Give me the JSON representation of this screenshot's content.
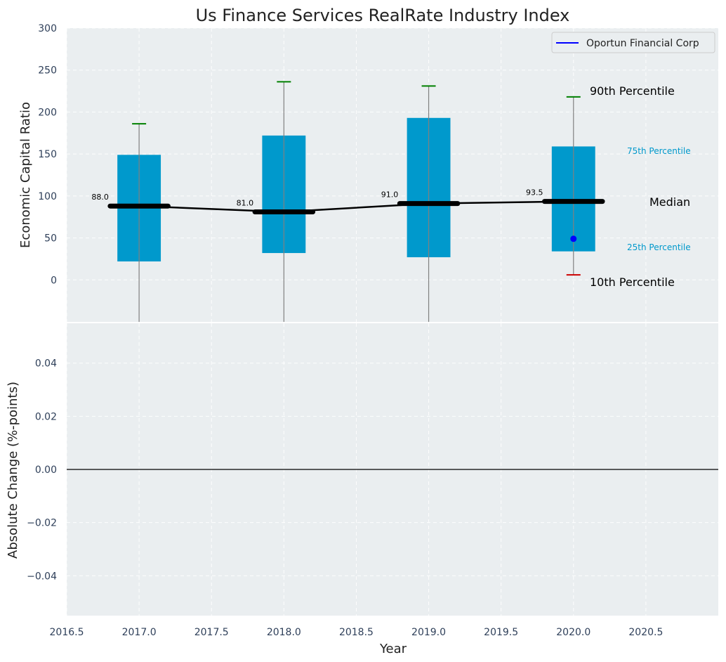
{
  "chart_data": {
    "type": "box",
    "title": "Us Finance Services RealRate Industry Index",
    "colors": {
      "box": "#0099cc",
      "median": "#000000",
      "p90": "#008000",
      "p10": "#cc0000",
      "company": "#0000ff",
      "background": "#eaeef0"
    },
    "top_panel": {
      "ylabel": "Economic Capital Ratio",
      "ylim": [
        -50,
        300
      ],
      "yticks": [
        "0",
        "50",
        "100",
        "150",
        "200",
        "250",
        "300"
      ],
      "ytick_values": [
        0,
        50,
        100,
        150,
        200,
        250,
        300
      ],
      "years": [
        2017,
        2018,
        2019,
        2020
      ],
      "p25": [
        22,
        32,
        27,
        34
      ],
      "p75": [
        149,
        172,
        193,
        159
      ],
      "median": [
        88.0,
        81.0,
        91.0,
        93.5
      ],
      "median_labels": [
        "88.0",
        "81.0",
        "91.0",
        "93.5"
      ],
      "p90": [
        186,
        236,
        231,
        218
      ],
      "p10": [
        null,
        null,
        null,
        6
      ],
      "company_series": {
        "name": "Oportun Financial Corp",
        "points": [
          [
            2020,
            49
          ]
        ]
      },
      "annotations": {
        "p90": "90th Percentile",
        "p75": "75th Percentile",
        "median": "Median",
        "p25": "25th Percentile",
        "p10": "10th Percentile"
      },
      "legend_position": "top-right"
    },
    "bottom_panel": {
      "xlabel": "Year",
      "ylabel": "Absolute Change (%-points)",
      "ylim": [
        -0.055,
        0.055
      ],
      "yticks": [
        "−0.04",
        "−0.02",
        "0.00",
        "0.02",
        "0.04"
      ],
      "ytick_values": [
        -0.04,
        -0.02,
        0,
        0.02,
        0.04
      ],
      "xlim": [
        2016.5,
        2021.0
      ],
      "xticks": [
        "2016.5",
        "2017.0",
        "2017.5",
        "2018.0",
        "2018.5",
        "2019.0",
        "2019.5",
        "2020.0",
        "2020.5"
      ],
      "xtick_values": [
        2016.5,
        2017.0,
        2017.5,
        2018.0,
        2018.5,
        2019.0,
        2019.5,
        2020.0,
        2020.5
      ],
      "zero_line": 0
    },
    "grid": true
  }
}
